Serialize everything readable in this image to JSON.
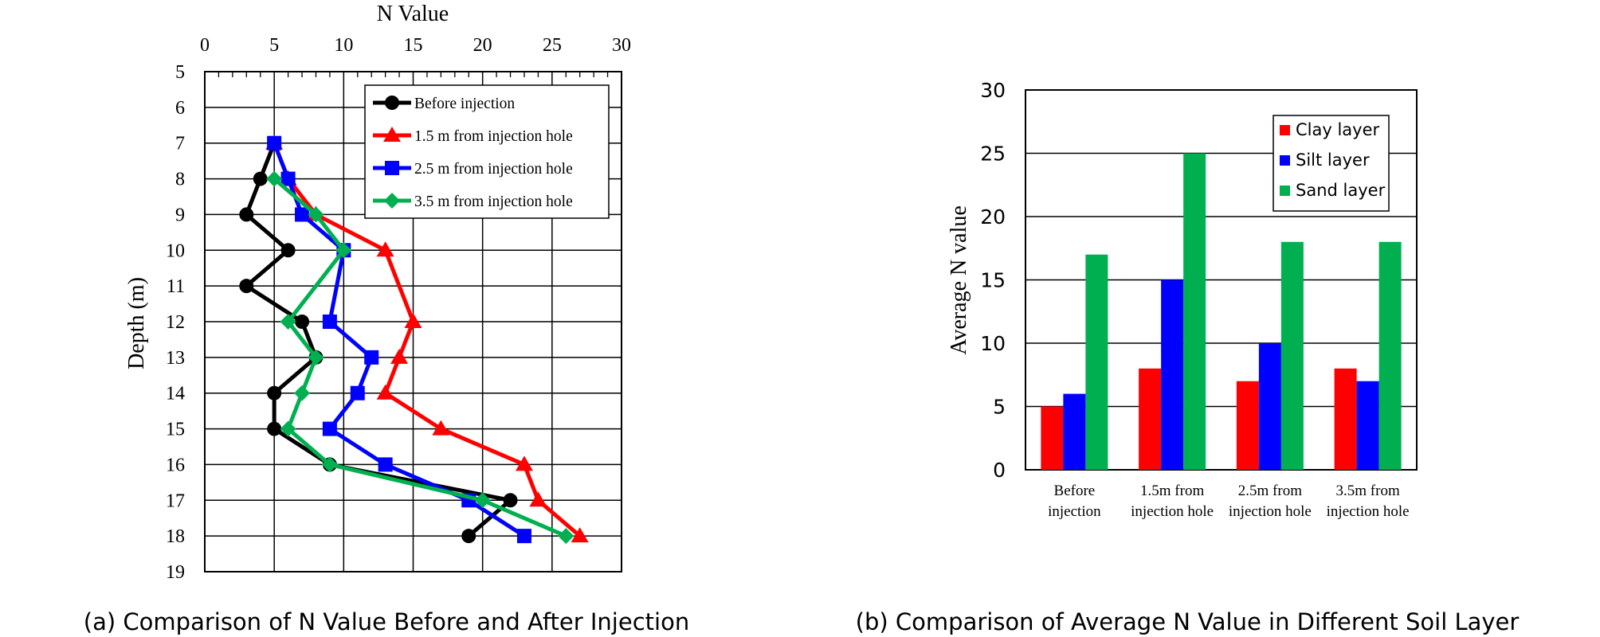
{
  "chart_data": [
    {
      "type": "line",
      "caption": "(a) Comparison of N Value Before and After Injection",
      "xlabel": "N Value",
      "ylabel": "Depth (m)",
      "xlim": [
        0,
        30
      ],
      "ylim": [
        5,
        19
      ],
      "x_ticks": [
        "0",
        "5",
        "10",
        "15",
        "20",
        "25",
        "30"
      ],
      "y_ticks": [
        "5",
        "6",
        "7",
        "8",
        "9",
        "10",
        "11",
        "12",
        "13",
        "14",
        "15",
        "16",
        "17",
        "18",
        "19"
      ],
      "y_inverted": true,
      "x_axis_position": "top",
      "grid": true,
      "legend_position": "top-right",
      "series": [
        {
          "name": "Before injection",
          "color": "#000000",
          "marker": "circle",
          "points": [
            [
              5,
              7
            ],
            [
              4,
              8
            ],
            [
              3,
              9
            ],
            [
              6,
              10
            ],
            [
              3,
              11
            ],
            [
              7,
              12
            ],
            [
              8,
              13
            ],
            [
              5,
              14
            ],
            [
              5,
              15
            ],
            [
              9,
              16
            ],
            [
              22,
              17
            ],
            [
              19,
              18
            ]
          ]
        },
        {
          "name": "1.5 m from injection hole",
          "color": "#ff0000",
          "marker": "triangle",
          "points": [
            [
              5,
              7
            ],
            [
              6,
              8
            ],
            [
              8,
              9
            ],
            [
              13,
              10
            ],
            [
              15,
              12
            ],
            [
              14,
              13
            ],
            [
              13,
              14
            ],
            [
              17,
              15
            ],
            [
              23,
              16
            ],
            [
              24,
              17
            ],
            [
              27,
              18
            ]
          ]
        },
        {
          "name": "2.5 m from injection hole",
          "color": "#0000ff",
          "marker": "square",
          "points": [
            [
              5,
              7
            ],
            [
              6,
              8
            ],
            [
              7,
              9
            ],
            [
              10,
              10
            ],
            [
              9,
              12
            ],
            [
              12,
              13
            ],
            [
              11,
              14
            ],
            [
              9,
              15
            ],
            [
              13,
              16
            ],
            [
              19,
              17
            ],
            [
              23,
              18
            ]
          ]
        },
        {
          "name": "3.5 m from injection hole",
          "color": "#00b050",
          "marker": "diamond",
          "points": [
            [
              5,
              8
            ],
            [
              8,
              9
            ],
            [
              10,
              10
            ],
            [
              6,
              12
            ],
            [
              8,
              13
            ],
            [
              7,
              14
            ],
            [
              6,
              15
            ],
            [
              9,
              16
            ],
            [
              20,
              17
            ],
            [
              26,
              18
            ]
          ]
        }
      ]
    },
    {
      "type": "bar",
      "caption": "(b) Comparison of Average N Value in Different Soil Layer",
      "ylabel": "Average N value",
      "ylim": [
        0,
        30
      ],
      "y_ticks": [
        "0",
        "5",
        "10",
        "15",
        "20",
        "25",
        "30"
      ],
      "grid": true,
      "legend_position": "top-right",
      "categories": [
        [
          "Before",
          "injection"
        ],
        [
          "1.5m from",
          "injection hole"
        ],
        [
          "2.5m from",
          "injection hole"
        ],
        [
          "3.5m from",
          "injection hole"
        ]
      ],
      "series": [
        {
          "name": "Clay layer",
          "color": "#ff0000",
          "values": [
            5,
            8,
            7,
            8
          ]
        },
        {
          "name": "Silt layer",
          "color": "#0000ff",
          "values": [
            6,
            15,
            10,
            7
          ]
        },
        {
          "name": "Sand layer",
          "color": "#00b050",
          "values": [
            17,
            25,
            18,
            18
          ]
        }
      ]
    }
  ]
}
